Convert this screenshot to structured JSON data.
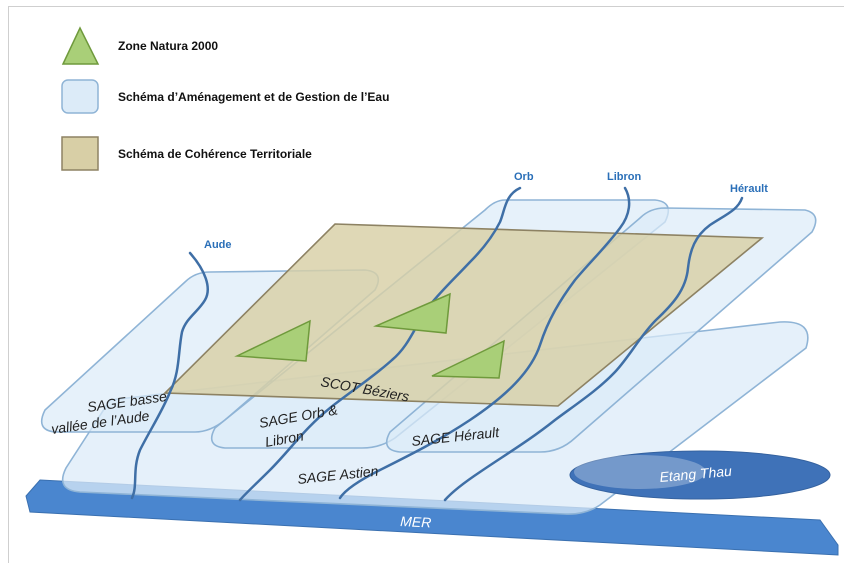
{
  "legend": {
    "natura": "Zone Natura 2000",
    "sage": "Schéma d’Aménagement et de Gestion de l’Eau",
    "scot": "Schéma de Cohérence Territoriale"
  },
  "rivers": {
    "aude": "Aude",
    "orb": "Orb",
    "libron": "Libron",
    "herault": "Hérault"
  },
  "zones": {
    "scot": "SCOT Béziers",
    "sage_aude_1": "SAGE basse",
    "sage_aude_2": "vallée de l’Aude",
    "sage_orb_1": "SAGE Orb &",
    "sage_orb_2": "Libron",
    "sage_herault": "SAGE Hérault",
    "sage_astien": "SAGE Astien",
    "etang": "Etang Thau",
    "mer": "MER"
  },
  "colors": {
    "sage_fill": "#dcebf8",
    "sage_stroke": "#8fb4d6",
    "scot_fill": "#d8cfa6",
    "scot_stroke": "#8d8263",
    "natura_fill": "#a9cf78",
    "natura_stroke": "#6f9a3c",
    "river": "#3f6fa6",
    "sea": "#4a86cf",
    "lagoon": "#3f72b8"
  }
}
